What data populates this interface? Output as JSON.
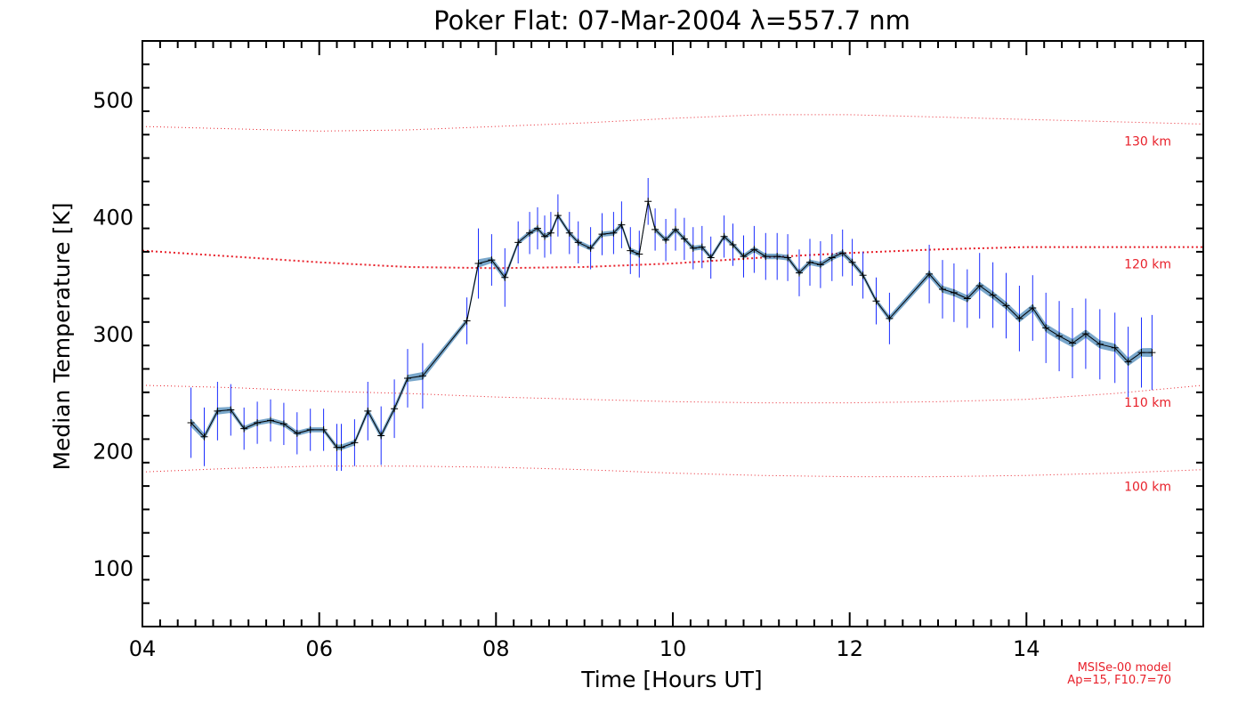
{
  "chart_data": {
    "type": "line",
    "title": "Poker Flat: 07-Mar-2004 λ=557.7 nm",
    "xlabel": "Time [Hours UT]",
    "ylabel": "Median Temperature [K]",
    "xlim": [
      4.0,
      16.0
    ],
    "ylim": [
      50,
      550
    ],
    "x_ticks": [
      4,
      6,
      8,
      10,
      12,
      14
    ],
    "x_tick_labels": [
      "04",
      "06",
      "08",
      "10",
      "12",
      "14"
    ],
    "y_ticks": [
      100,
      200,
      300,
      400,
      500
    ],
    "y_tick_labels": [
      "100",
      "200",
      "300",
      "400",
      "500"
    ],
    "grid": false,
    "colors": {
      "line": "#000000",
      "errorbar": "#1a2cff",
      "model": "#e8202a",
      "fill_between": "#0b5fa0"
    },
    "series": [
      {
        "x": [
          4.55,
          4.7,
          4.85,
          5.0,
          5.15,
          5.3,
          5.45,
          5.6,
          5.75,
          5.9,
          6.05,
          6.2,
          6.25,
          6.4,
          6.55,
          6.7,
          6.85,
          7.0,
          7.17,
          7.67,
          7.8,
          7.95,
          8.1,
          8.25,
          8.38,
          8.47,
          8.55,
          8.62,
          8.7,
          8.83,
          8.93,
          9.07,
          9.2,
          9.33,
          9.42,
          9.52,
          9.62,
          9.72,
          9.8,
          9.92,
          10.03,
          10.13,
          10.23,
          10.33,
          10.43,
          10.58,
          10.68,
          10.8,
          10.92,
          11.05,
          11.18,
          11.3,
          11.43,
          11.55,
          11.67,
          11.8,
          11.92,
          12.03,
          12.15,
          12.3,
          12.45,
          12.9,
          13.05,
          13.18,
          13.33,
          13.47,
          13.62,
          13.77,
          13.92,
          14.07,
          14.22,
          14.37,
          14.52,
          14.67,
          14.83,
          15.0,
          15.15,
          15.3,
          15.42
        ],
        "y": [
          224,
          212,
          234,
          235,
          219,
          224,
          226,
          223,
          215,
          218,
          218,
          203,
          203,
          207,
          234,
          213,
          236,
          262,
          264,
          311,
          360,
          363,
          348,
          378,
          386,
          390,
          383,
          386,
          401,
          386,
          378,
          373,
          385,
          386,
          393,
          371,
          368,
          413,
          389,
          380,
          389,
          381,
          373,
          374,
          365,
          383,
          376,
          366,
          372,
          366,
          366,
          365,
          352,
          361,
          359,
          365,
          369,
          361,
          350,
          328,
          313,
          351,
          338,
          335,
          330,
          341,
          333,
          324,
          313,
          322,
          305,
          298,
          292,
          300,
          291,
          288,
          276,
          284,
          284
        ],
        "err": [
          30,
          25,
          25,
          22,
          18,
          18,
          18,
          18,
          18,
          18,
          18,
          20,
          20,
          20,
          25,
          25,
          25,
          25,
          28,
          20,
          30,
          22,
          25,
          18,
          18,
          18,
          18,
          18,
          18,
          18,
          18,
          18,
          18,
          18,
          20,
          20,
          20,
          20,
          18,
          18,
          18,
          18,
          18,
          18,
          18,
          18,
          18,
          18,
          20,
          20,
          20,
          20,
          20,
          20,
          20,
          20,
          20,
          20,
          20,
          20,
          22,
          25,
          25,
          25,
          25,
          28,
          28,
          28,
          28,
          28,
          30,
          30,
          30,
          30,
          30,
          30,
          30,
          30,
          32
        ]
      }
    ],
    "model_curves": [
      {
        "label": "130 km",
        "style": "dotted",
        "x": [
          4.0,
          5.0,
          6.0,
          7.0,
          8.0,
          9.0,
          10.0,
          11.0,
          12.0,
          13.0,
          14.0,
          15.0,
          16.0
        ],
        "y": [
          477,
          475,
          473,
          474,
          477,
          480,
          484,
          487,
          487,
          485,
          483,
          481,
          479
        ]
      },
      {
        "label": "120 km",
        "style": "dashed",
        "x": [
          4.0,
          5.0,
          6.0,
          7.0,
          8.0,
          9.0,
          10.0,
          11.0,
          12.0,
          13.0,
          14.0,
          15.0,
          16.0
        ],
        "y": [
          371,
          366,
          361,
          357,
          356,
          357,
          360,
          365,
          369,
          372,
          374,
          374,
          374
        ]
      },
      {
        "label": "110 km",
        "style": "dotted",
        "x": [
          4.0,
          5.0,
          6.0,
          7.0,
          8.0,
          9.0,
          10.0,
          11.0,
          12.0,
          13.0,
          14.0,
          15.0,
          16.0
        ],
        "y": [
          256,
          254,
          251,
          249,
          246,
          244,
          242,
          241,
          241,
          242,
          244,
          249,
          256
        ]
      },
      {
        "label": "100 km",
        "style": "dotted",
        "x": [
          4.0,
          5.0,
          6.0,
          7.0,
          8.0,
          9.0,
          10.0,
          11.0,
          12.0,
          13.0,
          14.0,
          15.0,
          16.0
        ],
        "y": [
          182,
          185,
          187,
          187,
          186,
          184,
          181,
          179,
          178,
          178,
          179,
          181,
          184
        ]
      }
    ],
    "annotations": [
      "MSISe-00 model",
      "Ap=15, F10.7=70"
    ]
  }
}
